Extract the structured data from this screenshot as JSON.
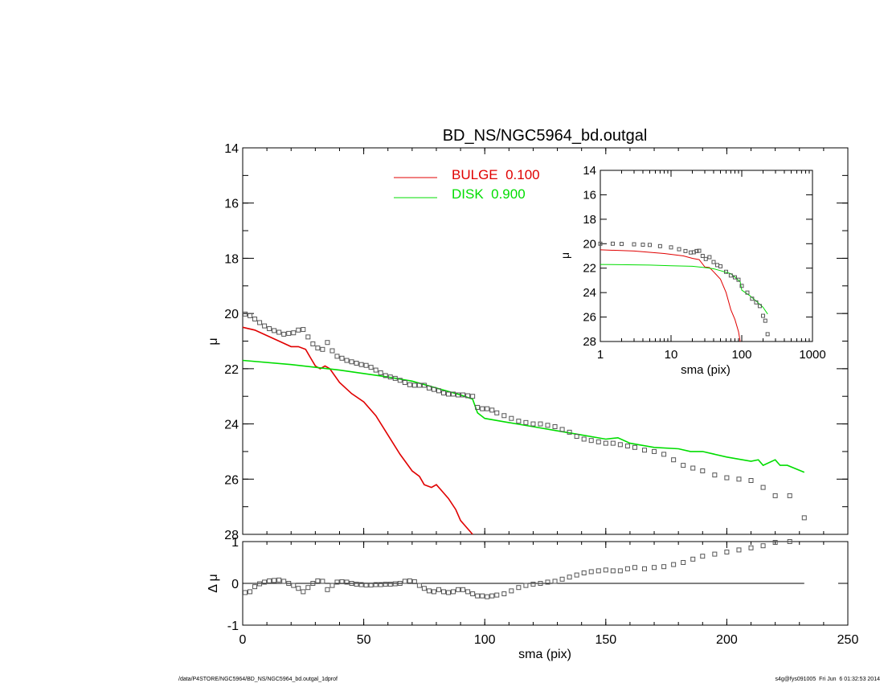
{
  "footer": {
    "left": "/data/P4STORE/NGC5964/BD_NS/NGC5964_bd.outgal_1dprof",
    "right": "s4g@fys091005  Fri Jun  6 01:32:53 2014"
  },
  "colors": {
    "bulge": "#e00000",
    "disk": "#00dd00",
    "data": "#555555",
    "axes": "#000000"
  },
  "chart_data": [
    {
      "type": "line",
      "title": "BD_NS/NGC5964_bd.outgal",
      "xlabel": "",
      "ylabel": "μ",
      "xlim": [
        0,
        250
      ],
      "ylim": [
        28,
        14
      ],
      "x_ticks": [
        0,
        50,
        100,
        150,
        200,
        250
      ],
      "y_ticks": [
        14,
        16,
        18,
        20,
        22,
        24,
        26,
        28
      ],
      "y_inverted": true,
      "legend_position": "top-center",
      "series": [
        {
          "name": "BULGE  0.100",
          "kind": "line",
          "color": "#e00000",
          "x": [
            0,
            5,
            10,
            15,
            20,
            23,
            26,
            28,
            30,
            32,
            34,
            36,
            40,
            45,
            50,
            55,
            60,
            65,
            70,
            73,
            75,
            78,
            80,
            82,
            85,
            88,
            90,
            93,
            95
          ],
          "y": [
            20.5,
            20.6,
            20.8,
            21.0,
            21.2,
            21.2,
            21.3,
            21.6,
            21.9,
            22.0,
            21.9,
            22.0,
            22.5,
            22.9,
            23.2,
            23.7,
            24.4,
            25.1,
            25.7,
            25.9,
            26.2,
            26.3,
            26.2,
            26.4,
            26.7,
            27.1,
            27.5,
            27.8,
            28.0
          ]
        },
        {
          "name": "DISK  0.900",
          "kind": "line",
          "color": "#00dd00",
          "x": [
            0,
            20,
            40,
            60,
            70,
            80,
            90,
            95,
            97,
            100,
            110,
            120,
            130,
            140,
            150,
            155,
            160,
            170,
            180,
            185,
            190,
            200,
            210,
            213,
            215,
            220,
            222,
            225,
            232
          ],
          "y": [
            21.7,
            21.85,
            22.05,
            22.3,
            22.45,
            22.7,
            22.95,
            23.1,
            23.6,
            23.8,
            23.95,
            24.1,
            24.25,
            24.4,
            24.55,
            24.5,
            24.7,
            24.85,
            24.9,
            25.0,
            25.0,
            25.2,
            25.35,
            25.3,
            25.5,
            25.3,
            25.5,
            25.5,
            25.75
          ]
        },
        {
          "name": "",
          "kind": "markers",
          "color": "#555555",
          "x": [
            1,
            3,
            5,
            7,
            9,
            11,
            13,
            15,
            17,
            19,
            21,
            23,
            25,
            27,
            29,
            31,
            33,
            35,
            37,
            39,
            41,
            43,
            45,
            47,
            49,
            51,
            53,
            55,
            57,
            59,
            61,
            63,
            65,
            67,
            69,
            71,
            73,
            75,
            77,
            79,
            81,
            83,
            85,
            87,
            89,
            91,
            93,
            95,
            97,
            99,
            101,
            103,
            105,
            108,
            111,
            114,
            117,
            120,
            123,
            126,
            129,
            132,
            135,
            138,
            141,
            144,
            147,
            150,
            153,
            156,
            159,
            162,
            166,
            170,
            174,
            178,
            182,
            186,
            190,
            195,
            200,
            205,
            210,
            215,
            220,
            226,
            232
          ],
          "y": [
            20.02,
            20.08,
            20.2,
            20.33,
            20.45,
            20.55,
            20.62,
            20.68,
            20.75,
            20.72,
            20.7,
            20.6,
            20.58,
            20.85,
            21.1,
            21.25,
            21.3,
            21.05,
            21.35,
            21.55,
            21.62,
            21.7,
            21.75,
            21.8,
            21.85,
            21.88,
            21.95,
            22.05,
            22.15,
            22.25,
            22.3,
            22.35,
            22.42,
            22.5,
            22.58,
            22.6,
            22.6,
            22.6,
            22.7,
            22.75,
            22.8,
            22.88,
            22.92,
            22.92,
            22.95,
            22.95,
            22.98,
            23.0,
            23.4,
            23.45,
            23.45,
            23.5,
            23.6,
            23.7,
            23.8,
            23.9,
            23.95,
            24.0,
            24.0,
            24.05,
            24.1,
            24.2,
            24.3,
            24.45,
            24.55,
            24.6,
            24.65,
            24.7,
            24.7,
            24.75,
            24.8,
            24.85,
            24.95,
            25.0,
            25.1,
            25.3,
            25.5,
            25.6,
            25.7,
            25.85,
            25.95,
            26.0,
            26.05,
            26.3,
            26.6,
            26.6,
            27.4
          ]
        }
      ]
    },
    {
      "type": "scatter",
      "title": "",
      "xlabel": "sma (pix)",
      "ylabel": "Δ μ",
      "xlim": [
        0,
        250
      ],
      "ylim": [
        -1,
        1
      ],
      "x_ticks": [
        0,
        50,
        100,
        150,
        200,
        250
      ],
      "y_ticks": [
        -1,
        0,
        1
      ],
      "reference_line": 0,
      "series": [
        {
          "name": "",
          "color": "#555555",
          "x": [
            1,
            3,
            5,
            7,
            9,
            11,
            13,
            15,
            17,
            19,
            21,
            23,
            25,
            27,
            29,
            31,
            33,
            35,
            37,
            39,
            41,
            43,
            45,
            47,
            49,
            51,
            53,
            55,
            57,
            59,
            61,
            63,
            65,
            67,
            69,
            71,
            73,
            75,
            77,
            79,
            81,
            83,
            85,
            87,
            89,
            91,
            93,
            95,
            97,
            99,
            101,
            103,
            105,
            108,
            111,
            114,
            117,
            120,
            123,
            126,
            129,
            132,
            135,
            138,
            141,
            144,
            147,
            150,
            153,
            156,
            159,
            162,
            166,
            170,
            174,
            178,
            182,
            186,
            190,
            195,
            200,
            205,
            210,
            215,
            220,
            226
          ],
          "y": [
            -0.22,
            -0.2,
            -0.08,
            -0.01,
            0.03,
            0.06,
            0.07,
            0.08,
            0.05,
            0.0,
            -0.05,
            -0.12,
            -0.2,
            -0.1,
            0.0,
            0.06,
            0.05,
            -0.15,
            -0.05,
            0.03,
            0.04,
            0.03,
            0.0,
            -0.02,
            -0.03,
            -0.04,
            -0.04,
            -0.03,
            -0.03,
            -0.02,
            -0.02,
            -0.01,
            0.0,
            0.05,
            0.06,
            0.04,
            -0.05,
            -0.12,
            -0.18,
            -0.2,
            -0.15,
            -0.2,
            -0.22,
            -0.2,
            -0.15,
            -0.15,
            -0.2,
            -0.25,
            -0.3,
            -0.3,
            -0.32,
            -0.3,
            -0.28,
            -0.25,
            -0.18,
            -0.1,
            -0.05,
            -0.02,
            0.0,
            0.03,
            0.05,
            0.1,
            0.15,
            0.2,
            0.25,
            0.28,
            0.3,
            0.32,
            0.3,
            0.3,
            0.35,
            0.38,
            0.35,
            0.38,
            0.4,
            0.45,
            0.5,
            0.58,
            0.65,
            0.7,
            0.75,
            0.8,
            0.85,
            0.9,
            0.98,
            1.0
          ]
        }
      ]
    },
    {
      "type": "line",
      "title": "",
      "xlabel": "sma (pix)",
      "ylabel": "μ",
      "xscale": "log",
      "xlim": [
        1,
        1000
      ],
      "ylim": [
        28,
        14
      ],
      "x_ticks": [
        1,
        10,
        100,
        1000
      ],
      "y_ticks": [
        14,
        16,
        18,
        20,
        22,
        24,
        26,
        28
      ],
      "y_inverted": true,
      "series": [
        {
          "name": "",
          "kind": "line",
          "color": "#e00000",
          "x": [
            1,
            3,
            8,
            15,
            20,
            25,
            30,
            35,
            40,
            50,
            60,
            70,
            80,
            90,
            95
          ],
          "y": [
            20.5,
            20.6,
            20.8,
            21.0,
            21.2,
            21.3,
            21.9,
            21.95,
            22.3,
            22.9,
            24.0,
            25.4,
            26.2,
            27.2,
            28.0
          ]
        },
        {
          "name": "",
          "kind": "line",
          "color": "#00dd00",
          "x": [
            1,
            5,
            10,
            20,
            30,
            40,
            50,
            70,
            95,
            100,
            130,
            160,
            200,
            232
          ],
          "y": [
            21.7,
            21.75,
            21.8,
            21.85,
            21.95,
            22.05,
            22.2,
            22.45,
            23.1,
            23.8,
            24.25,
            24.7,
            25.2,
            25.75
          ]
        },
        {
          "name": "",
          "kind": "markers",
          "color": "#555555",
          "x": [
            1,
            1.5,
            2,
            3,
            4,
            5,
            7,
            10,
            13,
            16,
            19,
            21,
            23,
            25,
            28,
            31,
            35,
            40,
            45,
            50,
            60,
            70,
            80,
            90,
            100,
            120,
            140,
            160,
            180,
            200,
            215,
            232
          ],
          "y": [
            20.0,
            20.0,
            20.02,
            20.05,
            20.08,
            20.1,
            20.2,
            20.3,
            20.45,
            20.6,
            20.72,
            20.7,
            20.6,
            20.58,
            21.0,
            21.25,
            21.1,
            21.5,
            21.75,
            21.85,
            22.3,
            22.6,
            22.75,
            22.95,
            23.45,
            24.0,
            24.5,
            24.8,
            25.1,
            25.9,
            26.3,
            27.4
          ]
        }
      ]
    }
  ]
}
